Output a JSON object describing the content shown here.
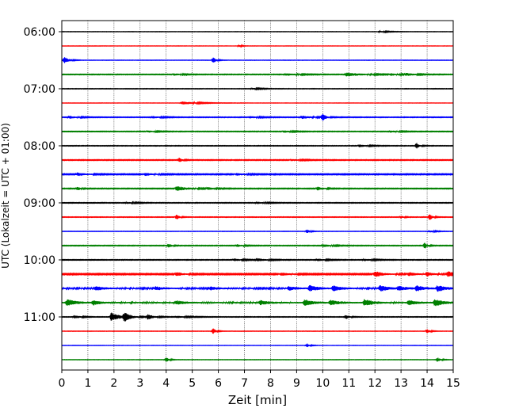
{
  "chart_data": {
    "type": "line",
    "title": "",
    "xlabel": "Zeit  [min]",
    "ylabel": "UTC (Lokalzeit = UTC + 01:00)",
    "xlim": [
      0,
      15
    ],
    "x_ticks": [
      0,
      1,
      2,
      3,
      4,
      5,
      6,
      7,
      8,
      9,
      10,
      11,
      12,
      13,
      14,
      15
    ],
    "y_ticks": [
      "06:00",
      "07:00",
      "08:00",
      "09:00",
      "10:00",
      "11:00"
    ],
    "grid": "vertical dotted",
    "trace_colors": [
      "#000000",
      "#ff0000",
      "#0000ff",
      "#008000"
    ],
    "series": [
      {
        "start": "06:00",
        "color": "#000000",
        "noise": 0.18,
        "bursts": [
          [
            12.2,
            0.9,
            0.3
          ]
        ]
      },
      {
        "start": "06:15",
        "color": "#ff0000",
        "noise": 0.15,
        "bursts": [
          [
            6.8,
            1.2,
            0.1
          ]
        ]
      },
      {
        "start": "06:30",
        "color": "#0000ff",
        "noise": 0.18,
        "bursts": [
          [
            0.1,
            4.5,
            0.15
          ],
          [
            5.8,
            4.0,
            0.1
          ]
        ]
      },
      {
        "start": "06:45",
        "color": "#008000",
        "noise": 0.35,
        "bursts": [
          [
            4.3,
            1.2,
            0.3
          ],
          [
            8.6,
            1.5,
            0.4
          ],
          [
            10.9,
            2.2,
            0.6
          ],
          [
            12.6,
            1.3,
            0.3
          ],
          [
            13.2,
            1.6,
            0.3
          ]
        ]
      },
      {
        "start": "07:00",
        "color": "#000000",
        "noise": 0.25,
        "bursts": [
          [
            7.3,
            1.0,
            0.3
          ]
        ]
      },
      {
        "start": "07:15",
        "color": "#ff0000",
        "noise": 0.15,
        "bursts": [
          [
            4.6,
            2.0,
            0.5
          ]
        ]
      },
      {
        "start": "07:30",
        "color": "#0000ff",
        "noise": 0.35,
        "bursts": [
          [
            0.3,
            1.5,
            0.3
          ],
          [
            3.5,
            1.3,
            0.3
          ],
          [
            7.2,
            1.4,
            0.3
          ],
          [
            9.2,
            1.8,
            0.4
          ],
          [
            10.0,
            5.0,
            0.1
          ]
        ]
      },
      {
        "start": "07:45",
        "color": "#008000",
        "noise": 0.35,
        "bursts": [
          [
            3.3,
            1.2,
            0.3
          ],
          [
            8.5,
            1.2,
            0.3
          ],
          [
            12.6,
            1.2,
            0.3
          ]
        ]
      },
      {
        "start": "08:00",
        "color": "#000000",
        "noise": 0.3,
        "bursts": [
          [
            11.4,
            1.5,
            0.3
          ],
          [
            13.6,
            3.5,
            0.1
          ]
        ]
      },
      {
        "start": "08:15",
        "color": "#ff0000",
        "noise": 0.4,
        "bursts": [
          [
            4.5,
            3.0,
            0.1
          ],
          [
            8.8,
            1.2,
            0.3
          ]
        ]
      },
      {
        "start": "08:30",
        "color": "#0000ff",
        "noise": 0.5,
        "bursts": [
          [
            0.6,
            2.0,
            0.3
          ],
          [
            3.2,
            1.6,
            0.3
          ],
          [
            6.7,
            1.4,
            0.3
          ]
        ]
      },
      {
        "start": "08:45",
        "color": "#008000",
        "noise": 0.4,
        "bursts": [
          [
            0.6,
            2.5,
            0.1
          ],
          [
            4.4,
            3.0,
            0.4
          ],
          [
            5.6,
            1.6,
            0.2
          ],
          [
            9.8,
            2.2,
            0.2
          ]
        ]
      },
      {
        "start": "09:00",
        "color": "#000000",
        "noise": 0.35,
        "bursts": [
          [
            2.5,
            1.0,
            0.3
          ],
          [
            7.5,
            1.2,
            0.3
          ]
        ]
      },
      {
        "start": "09:15",
        "color": "#ff0000",
        "noise": 0.3,
        "bursts": [
          [
            4.4,
            3.0,
            0.1
          ],
          [
            14.1,
            4.0,
            0.1
          ],
          [
            13.0,
            1.6,
            0.1
          ]
        ]
      },
      {
        "start": "09:30",
        "color": "#0000ff",
        "noise": 0.2,
        "bursts": [
          [
            9.4,
            2.5,
            0.1
          ],
          [
            14.1,
            1.2,
            0.2
          ]
        ]
      },
      {
        "start": "09:45",
        "color": "#008000",
        "noise": 0.35,
        "bursts": [
          [
            4.1,
            2.5,
            0.1
          ],
          [
            6.7,
            1.6,
            0.2
          ],
          [
            10.0,
            1.8,
            0.3
          ],
          [
            13.9,
            4.0,
            0.1
          ]
        ]
      },
      {
        "start": "10:00",
        "color": "#000000",
        "noise": 0.35,
        "bursts": [
          [
            6.6,
            1.5,
            0.3
          ],
          [
            7.5,
            1.8,
            0.3
          ],
          [
            9.8,
            1.4,
            0.3
          ],
          [
            11.6,
            1.3,
            0.3
          ]
        ]
      },
      {
        "start": "10:15",
        "color": "#ff0000",
        "noise": 0.6,
        "bursts": [
          [
            4.4,
            2.5,
            0.2
          ],
          [
            8.4,
            1.8,
            0.3
          ],
          [
            12.0,
            3.5,
            0.3
          ],
          [
            13.3,
            2.0,
            0.3
          ],
          [
            14.0,
            2.5,
            0.2
          ],
          [
            14.8,
            3.5,
            0.3
          ]
        ]
      },
      {
        "start": "10:30",
        "color": "#0000ff",
        "noise": 0.8,
        "bursts": [
          [
            1.3,
            2.5,
            0.3
          ],
          [
            3.6,
            2.0,
            0.3
          ],
          [
            5.7,
            1.8,
            0.3
          ],
          [
            8.7,
            2.2,
            0.3
          ],
          [
            9.5,
            3.5,
            0.3
          ],
          [
            10.4,
            3.0,
            0.3
          ],
          [
            12.2,
            3.5,
            0.3
          ],
          [
            12.9,
            2.5,
            0.3
          ],
          [
            13.6,
            3.0,
            0.3
          ],
          [
            14.4,
            3.5,
            0.3
          ]
        ]
      },
      {
        "start": "10:45",
        "color": "#008000",
        "noise": 0.9,
        "bursts": [
          [
            0.2,
            4.0,
            0.3
          ],
          [
            1.2,
            3.0,
            0.2
          ],
          [
            4.4,
            2.0,
            0.3
          ],
          [
            7.6,
            2.5,
            0.3
          ],
          [
            9.3,
            3.5,
            0.3
          ],
          [
            10.3,
            3.0,
            0.3
          ],
          [
            11.6,
            4.0,
            0.3
          ],
          [
            13.3,
            2.5,
            0.3
          ],
          [
            14.3,
            4.0,
            0.3
          ]
        ]
      },
      {
        "start": "11:00",
        "color": "#000000",
        "noise": 0.3,
        "bursts": [
          [
            0.5,
            2.0,
            0.2
          ],
          [
            1.9,
            5.5,
            0.3
          ],
          [
            2.4,
            5.5,
            0.2
          ],
          [
            3.3,
            3.5,
            0.2
          ],
          [
            4.4,
            1.2,
            0.4
          ],
          [
            10.9,
            3.0,
            0.1
          ]
        ]
      },
      {
        "start": "11:15",
        "color": "#ff0000",
        "noise": 0.2,
        "bursts": [
          [
            5.8,
            3.5,
            0.1
          ],
          [
            14.0,
            3.0,
            0.1
          ]
        ]
      },
      {
        "start": "11:30",
        "color": "#0000ff",
        "noise": 0.15,
        "bursts": [
          [
            9.4,
            2.5,
            0.1
          ]
        ]
      },
      {
        "start": "11:45",
        "color": "#008000",
        "noise": 0.2,
        "bursts": [
          [
            4.0,
            3.0,
            0.1
          ],
          [
            14.4,
            3.0,
            0.1
          ]
        ]
      }
    ]
  }
}
